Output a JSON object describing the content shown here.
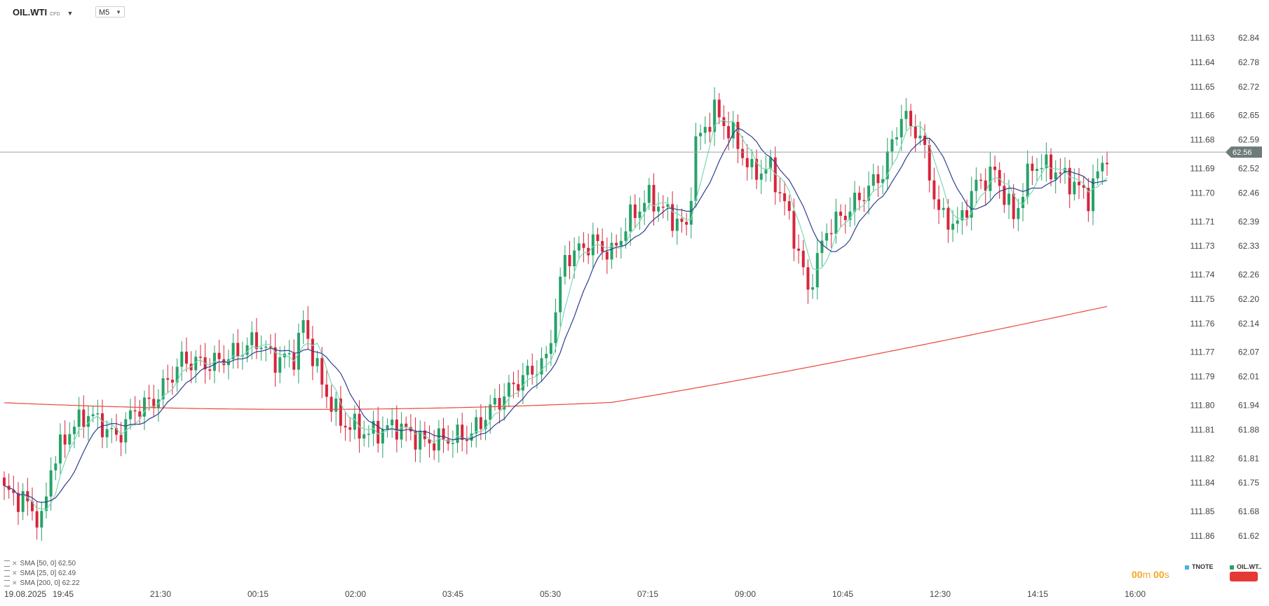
{
  "toolbar": {
    "symbol": "OIL.WTI",
    "symbol_tag": "CFD",
    "timeframe": "M5"
  },
  "current_price": "62.56",
  "timer": {
    "min": "00",
    "min_unit": "m",
    "sec": "00",
    "sec_unit": "s"
  },
  "overlays": [
    "TNOTE",
    "OIL.WT.."
  ],
  "indicators": [
    {
      "label": "SMA [50, 0] 62.50",
      "color": "#2f3d8f"
    },
    {
      "label": "SMA [25, 0] 62.49",
      "color": "#7dd9b5"
    },
    {
      "label": "SMA [200, 0] 62.22",
      "color": "#e8483b"
    }
  ],
  "colors": {
    "up": "#26a269",
    "down": "#d6263b",
    "sma50": "#2f3d8f",
    "sma25": "#7dd9b5",
    "sma200": "#e8483b",
    "price_line": "#9aa0a6",
    "price_tag": "#6e7b7b",
    "timer": "#f5a623",
    "tnote": "#42b4e6"
  },
  "chart_data": {
    "type": "candlestick",
    "x_start_label": "19.08.2025",
    "x_ticks": [
      "19:45",
      "21:30",
      "00:15",
      "02:00",
      "03:45",
      "05:30",
      "07:15",
      "09:00",
      "10:45",
      "12:30",
      "14:15",
      "16:00"
    ],
    "y_axis_right": {
      "ticks": [
        "62.84",
        "62.78",
        "62.72",
        "62.65",
        "62.59",
        "62.52",
        "62.46",
        "62.39",
        "62.33",
        "62.26",
        "62.20",
        "62.14",
        "62.07",
        "62.01",
        "61.94",
        "61.88",
        "61.81",
        "61.75",
        "61.68",
        "61.62"
      ],
      "ylim": [
        61.62,
        62.84
      ]
    },
    "y_axis_left_overlay": {
      "ticks": [
        "111.63",
        "111.64",
        "111.65",
        "111.66",
        "111.68",
        "111.69",
        "111.70",
        "111.71",
        "111.73",
        "111.74",
        "111.75",
        "111.76",
        "111.77",
        "111.79",
        "111.80",
        "111.81",
        "111.82",
        "111.84",
        "111.85",
        "111.86"
      ]
    },
    "anchors": [
      [
        0,
        61.73
      ],
      [
        5,
        61.7
      ],
      [
        8,
        61.65
      ],
      [
        10,
        61.79
      ],
      [
        14,
        61.88
      ],
      [
        18,
        61.92
      ],
      [
        24,
        61.86
      ],
      [
        28,
        61.93
      ],
      [
        32,
        61.95
      ],
      [
        38,
        62.05
      ],
      [
        44,
        62.04
      ],
      [
        50,
        62.07
      ],
      [
        54,
        62.1
      ],
      [
        58,
        62.05
      ],
      [
        62,
        62.06
      ],
      [
        64,
        62.14
      ],
      [
        68,
        61.99
      ],
      [
        72,
        61.9
      ],
      [
        78,
        61.87
      ],
      [
        84,
        61.89
      ],
      [
        90,
        61.85
      ],
      [
        96,
        61.86
      ],
      [
        100,
        61.87
      ],
      [
        104,
        61.93
      ],
      [
        110,
        62.0
      ],
      [
        116,
        62.05
      ],
      [
        120,
        62.3
      ],
      [
        126,
        62.34
      ],
      [
        130,
        62.31
      ],
      [
        134,
        62.4
      ],
      [
        138,
        62.45
      ],
      [
        142,
        62.41
      ],
      [
        146,
        62.37
      ],
      [
        148,
        62.58
      ],
      [
        152,
        62.66
      ],
      [
        156,
        62.6
      ],
      [
        160,
        62.51
      ],
      [
        164,
        62.52
      ],
      [
        168,
        62.4
      ],
      [
        172,
        62.22
      ],
      [
        176,
        62.37
      ],
      [
        180,
        62.41
      ],
      [
        184,
        62.46
      ],
      [
        188,
        62.51
      ],
      [
        192,
        62.65
      ],
      [
        196,
        62.6
      ],
      [
        200,
        62.41
      ],
      [
        204,
        62.38
      ],
      [
        208,
        62.48
      ],
      [
        212,
        62.51
      ],
      [
        216,
        62.4
      ],
      [
        220,
        62.53
      ],
      [
        224,
        62.52
      ],
      [
        228,
        62.49
      ],
      [
        232,
        62.45
      ],
      [
        236,
        62.56
      ]
    ],
    "sma": [
      {
        "period": 50,
        "value": 62.5
      },
      {
        "period": 25,
        "value": 62.49
      },
      {
        "period": 200,
        "value": 62.22
      }
    ]
  }
}
